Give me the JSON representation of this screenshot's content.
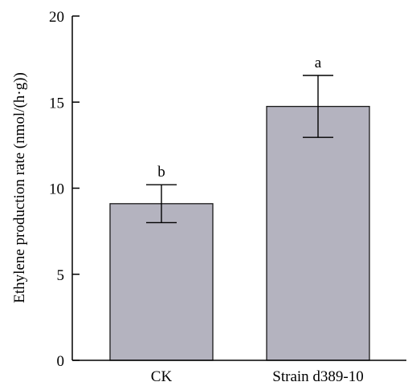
{
  "chart_data": {
    "type": "bar",
    "title": "",
    "xlabel": "",
    "ylabel": "Ethylene production rate (nmol/(h·g))",
    "ylim": [
      0,
      20
    ],
    "yticks": [
      0,
      5,
      10,
      15,
      20
    ],
    "categories": [
      "CK",
      "Strain d389-10"
    ],
    "values": [
      9.1,
      14.75
    ],
    "error": [
      1.1,
      1.8
    ],
    "significance": [
      "b",
      "a"
    ],
    "grid": false,
    "legend": "none",
    "bar_color": "#b4b3bf",
    "edge_color": "#1a1a1a"
  }
}
